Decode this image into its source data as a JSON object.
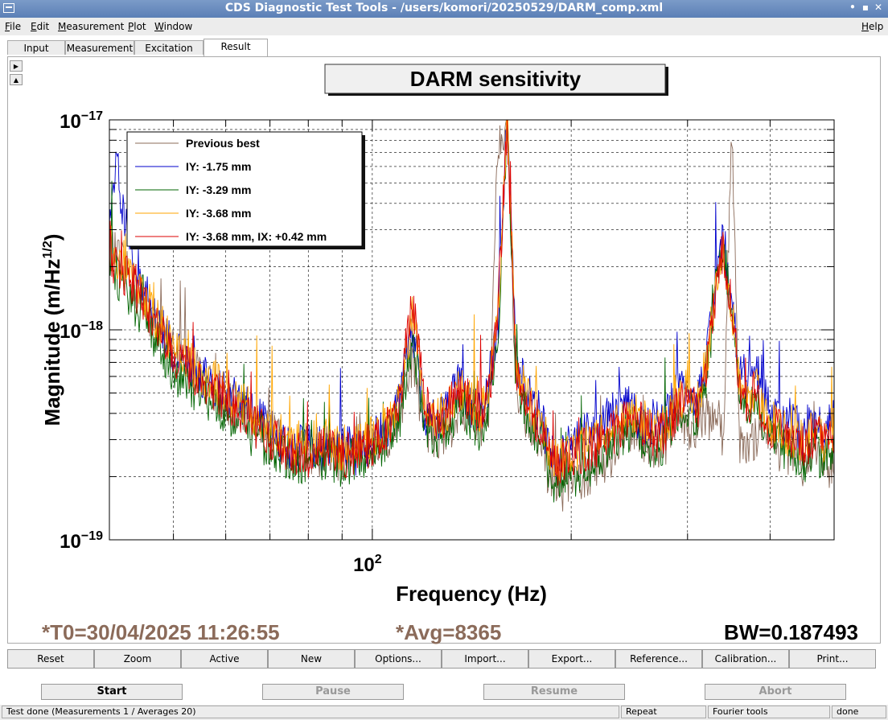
{
  "window": {
    "title": "CDS Diagnostic Test Tools - /users/komori/20250529/DARM_comp.xml"
  },
  "menu": {
    "file": "File",
    "edit": "Edit",
    "measurement": "Measurement",
    "plot": "Plot",
    "window": "Window",
    "help": "Help"
  },
  "tabs": [
    "Input",
    "Measurement",
    "Excitation",
    "Result"
  ],
  "chart_data": {
    "type": "line",
    "title": "DARM sensitivity",
    "xlabel": "Frequency (Hz)",
    "ylabel": "Magnitude (m/Hz^1/2)",
    "xscale": "log",
    "yscale": "log",
    "xlim": [
      40,
      500
    ],
    "ylim": [
      1e-19,
      1e-17
    ],
    "x_tick_labels": [
      {
        "value": 100,
        "base": "10",
        "exp": "2"
      }
    ],
    "y_tick_labels": [
      {
        "value": 1e-17,
        "base": "10",
        "exp": "−17"
      },
      {
        "value": 1e-18,
        "base": "10",
        "exp": "−18"
      },
      {
        "value": 1e-19,
        "base": "10",
        "exp": "−19"
      }
    ],
    "grid": true,
    "legend_position": "top-left",
    "series": [
      {
        "name": "Previous best",
        "color": "#8b6b5a",
        "offset": 0,
        "x": [
          40,
          42,
          45,
          48,
          50,
          55,
          60,
          65,
          70,
          75,
          80,
          85,
          90,
          95,
          100,
          105,
          110,
          115,
          120,
          125,
          130,
          135,
          140,
          145,
          150,
          155,
          160,
          165,
          170,
          175,
          180,
          185,
          190,
          200,
          210,
          220,
          230,
          240,
          250,
          260,
          270,
          280,
          290,
          300,
          310,
          320,
          330,
          340,
          350,
          360,
          370,
          380,
          390,
          400,
          410,
          420,
          430,
          440,
          450,
          460,
          470,
          480,
          490,
          500
        ],
        "y": [
          2.5e-18,
          2e-18,
          1.3e-18,
          1e-18,
          8e-19,
          6e-19,
          4.5e-19,
          3.8e-19,
          3.2e-19,
          2.7e-19,
          2.5e-19,
          2.6e-19,
          2.4e-19,
          2.6e-19,
          2.8e-19,
          3e-19,
          4e-19,
          7e-19,
          3.5e-19,
          3e-19,
          3.3e-19,
          4e-19,
          3.8e-19,
          3.2e-19,
          4e-19,
          8e-18,
          1e-17,
          5e-19,
          4e-19,
          3.5e-19,
          3e-19,
          2e-19,
          1.7e-19,
          1.8e-19,
          2e-19,
          2.2e-19,
          2.5e-19,
          3e-19,
          3.5e-19,
          2.8e-19,
          2.6e-19,
          3e-19,
          4e-19,
          3.5e-19,
          3.2e-19,
          4e-19,
          3.5e-19,
          3e-19,
          1e-17,
          2.8e-19,
          2.6e-19,
          3e-19,
          4e-19,
          3.2e-19,
          2.6e-19,
          3e-19,
          2.4e-19,
          2.6e-19,
          2.2e-19,
          2.5e-19,
          2.8e-19,
          2.3e-19,
          2.1e-19,
          2.5e-19
        ]
      },
      {
        "name": "IY: -1.75 mm",
        "color": "#0000cc",
        "offset": 0.05,
        "x": [
          40,
          41,
          42,
          44,
          46,
          48,
          50,
          55,
          60,
          65,
          70,
          75,
          80,
          85,
          90,
          95,
          100,
          105,
          110,
          115,
          120,
          125,
          130,
          135,
          140,
          145,
          150,
          155,
          160,
          165,
          170,
          175,
          180,
          185,
          190,
          200,
          210,
          220,
          230,
          240,
          250,
          260,
          270,
          280,
          290,
          300,
          310,
          320,
          330,
          340,
          350,
          360,
          370,
          380,
          390,
          400,
          410,
          420,
          430,
          440,
          450,
          460,
          470,
          480,
          490,
          500
        ],
        "y": [
          3e-18,
          6e-18,
          3e-18,
          1.8e-18,
          1.2e-18,
          9e-19,
          7e-19,
          5.5e-19,
          4.5e-19,
          3.8e-19,
          3e-19,
          2.4e-19,
          2.6e-19,
          2.4e-19,
          2.5e-19,
          2.3e-19,
          2.6e-19,
          3e-19,
          4.5e-19,
          9e-19,
          3.5e-19,
          3.2e-19,
          4e-19,
          5e-19,
          4e-19,
          3.5e-19,
          5e-19,
          9e-19,
          1e-17,
          6e-19,
          5e-19,
          4e-19,
          3.5e-19,
          2.5e-19,
          2.2e-19,
          2.5e-19,
          2.8e-19,
          3e-19,
          3.5e-19,
          4e-19,
          3.5e-19,
          3e-19,
          3.2e-19,
          3.8e-19,
          4.5e-19,
          5e-19,
          4e-19,
          6e-19,
          1.5e-18,
          2.5e-18,
          1.2e-18,
          6e-19,
          5e-19,
          6e-19,
          4.5e-19,
          3.8e-19,
          3.5e-19,
          3.2e-19,
          3.5e-19,
          3e-19,
          2.8e-19,
          3e-19,
          3.2e-19,
          2.8e-19,
          3e-19,
          3.5e-19
        ]
      },
      {
        "name": "IY: -3.29 mm",
        "color": "#006400",
        "offset": -0.04,
        "x": [
          40,
          42,
          45,
          48,
          50,
          55,
          60,
          65,
          70,
          75,
          80,
          85,
          90,
          95,
          100,
          105,
          110,
          115,
          120,
          125,
          130,
          135,
          140,
          145,
          150,
          155,
          160,
          165,
          170,
          175,
          180,
          185,
          190,
          200,
          210,
          220,
          230,
          240,
          250,
          260,
          270,
          280,
          290,
          300,
          310,
          320,
          330,
          340,
          350,
          360,
          370,
          380,
          390,
          400,
          410,
          420,
          430,
          440,
          450,
          460,
          470,
          480,
          490,
          500
        ],
        "y": [
          2.2e-18,
          1.8e-18,
          1.2e-18,
          9e-19,
          7e-19,
          5.5e-19,
          4.5e-19,
          3.6e-19,
          3e-19,
          2.6e-19,
          2.5e-19,
          2.7e-19,
          2.5e-19,
          2.7e-19,
          2.9e-19,
          3.2e-19,
          4.2e-19,
          1e-18,
          4e-19,
          3.4e-19,
          3.8e-19,
          4.8e-19,
          4.2e-19,
          3.6e-19,
          4.5e-19,
          1e-18,
          1e-17,
          6e-19,
          4.5e-19,
          3.8e-19,
          3.3e-19,
          2.3e-19,
          2e-19,
          2.2e-19,
          2.4e-19,
          2.6e-19,
          3e-19,
          3.4e-19,
          3.8e-19,
          3.2e-19,
          2.9e-19,
          3.3e-19,
          4.2e-19,
          4.8e-19,
          4e-19,
          6e-19,
          1.6e-18,
          2.8e-18,
          1.3e-18,
          5e-19,
          4.2e-19,
          5e-19,
          3.8e-19,
          3.3e-19,
          3.5e-19,
          3e-19,
          2.9e-19,
          2.8e-19,
          2.6e-19,
          2.8e-19,
          3e-19,
          2.6e-19,
          2.8e-19,
          3e-19
        ]
      },
      {
        "name": "IY: -3.68 mm",
        "color": "#ffa500",
        "offset": 0.02,
        "x": [
          40,
          42,
          45,
          48,
          50,
          55,
          60,
          65,
          70,
          75,
          80,
          85,
          90,
          95,
          100,
          105,
          110,
          115,
          120,
          125,
          130,
          135,
          140,
          145,
          150,
          155,
          160,
          165,
          170,
          175,
          180,
          185,
          190,
          200,
          210,
          220,
          230,
          240,
          250,
          260,
          270,
          280,
          290,
          300,
          310,
          320,
          330,
          340,
          350,
          360,
          370,
          380,
          390,
          400,
          410,
          420,
          430,
          440,
          450,
          460,
          470,
          480,
          490,
          500
        ],
        "y": [
          2.4e-18,
          1.9e-18,
          1.3e-18,
          1e-18,
          8e-19,
          6e-19,
          5e-19,
          4e-19,
          3.3e-19,
          2.8e-19,
          2.7e-19,
          2.9e-19,
          2.6e-19,
          2.8e-19,
          3e-19,
          3.4e-19,
          4.5e-19,
          1.1e-18,
          4.3e-19,
          3.6e-19,
          4e-19,
          5e-19,
          4.5e-19,
          3.8e-19,
          4.8e-19,
          1.2e-18,
          1e-17,
          6.5e-19,
          5e-19,
          4e-19,
          3.5e-19,
          2.6e-19,
          2.3e-19,
          2.5e-19,
          2.7e-19,
          2.9e-19,
          3.2e-19,
          3.6e-19,
          4e-19,
          3.4e-19,
          3.1e-19,
          3.5e-19,
          4.4e-19,
          5e-19,
          4.2e-19,
          6.5e-19,
          1.4e-18,
          2.4e-18,
          1.2e-18,
          5.2e-19,
          4.4e-19,
          5.2e-19,
          4e-19,
          3.4e-19,
          3.6e-19,
          3.1e-19,
          3e-19,
          2.9e-19,
          2.7e-19,
          3e-19,
          3.2e-19,
          2.8e-19,
          3e-19,
          3.3e-19
        ]
      },
      {
        "name": "IY: -3.68 mm, IX: +0.42 mm",
        "color": "#dd0000",
        "offset": -0.02,
        "x": [
          40,
          42,
          45,
          48,
          50,
          55,
          60,
          65,
          70,
          75,
          80,
          85,
          90,
          95,
          100,
          105,
          110,
          115,
          120,
          125,
          130,
          135,
          140,
          145,
          150,
          155,
          160,
          165,
          170,
          175,
          180,
          185,
          190,
          200,
          210,
          220,
          230,
          240,
          250,
          260,
          270,
          280,
          290,
          300,
          310,
          320,
          330,
          340,
          350,
          360,
          370,
          380,
          390,
          400,
          410,
          420,
          430,
          440,
          450,
          460,
          470,
          480,
          490,
          500
        ],
        "y": [
          2.3e-18,
          2e-18,
          1.4e-18,
          1e-18,
          8e-19,
          6e-19,
          4.8e-19,
          3.9e-19,
          3.2e-19,
          2.7e-19,
          2.6e-19,
          2.8e-19,
          2.6e-19,
          2.8e-19,
          3e-19,
          3.5e-19,
          5e-19,
          1.5e-18,
          4.5e-19,
          3.8e-19,
          4.2e-19,
          5.5e-19,
          4.8e-19,
          4e-19,
          5e-19,
          1.3e-18,
          1e-17,
          6.8e-19,
          5.2e-19,
          4.2e-19,
          3.6e-19,
          2.7e-19,
          2.4e-19,
          2.6e-19,
          2.8e-19,
          3e-19,
          3.3e-19,
          3.7e-19,
          4.1e-19,
          3.5e-19,
          3.2e-19,
          3.6e-19,
          4.5e-19,
          5.2e-19,
          4.4e-19,
          6.8e-19,
          1.5e-18,
          2.6e-18,
          1.3e-18,
          5.4e-19,
          4.6e-19,
          5.4e-19,
          4.2e-19,
          3.5e-19,
          3.7e-19,
          3.2e-19,
          3.1e-19,
          3e-19,
          2.8e-19,
          3.1e-19,
          3.3e-19,
          2.9e-19,
          3.1e-19,
          3.4e-19
        ]
      }
    ]
  },
  "info": {
    "t0": "*T0=30/04/2025 11:26:55",
    "avg": "*Avg=8365",
    "bw": "BW=0.187493"
  },
  "buttons": [
    "Reset",
    "Zoom",
    "Active",
    "New",
    "Options...",
    "Import...",
    "Export...",
    "Reference...",
    "Calibration...",
    "Print..."
  ],
  "run": {
    "start": "Start",
    "pause": "Pause",
    "resume": "Resume",
    "abort": "Abort"
  },
  "status": {
    "main": "Test done (Measurements 1 / Averages 20)",
    "repeat": "Repeat",
    "fourier": "Fourier tools",
    "done": "done"
  },
  "colors": {
    "info_text": "#8b6b5a",
    "titlebar": "#6b8fc0"
  }
}
